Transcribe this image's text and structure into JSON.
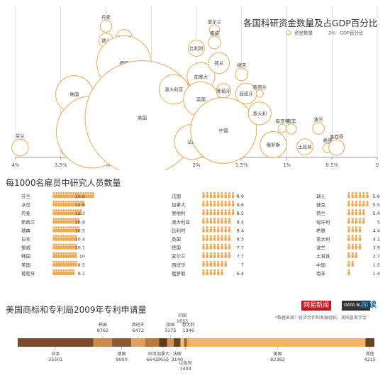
{
  "colors": {
    "orange": "#f0a850",
    "light_orange": "#f5bd74",
    "axis": "#999999",
    "grid": "#cccccc",
    "text": "#3a3a3a"
  },
  "titles": {
    "bubble": "各国科研资金数量及占GDP百分比",
    "people": "每1000名雇员中研究人员数量",
    "patents": "美国商标和专利局2009年专利申请量"
  },
  "legend": {
    "funds": "资金数量",
    "gdp_pct": "GDP百分比",
    "gdp_pct_prefix": "2%"
  },
  "brands": {
    "a": "网易新闻",
    "b": "DATA BLOG",
    "c": "数读"
  },
  "source": "*数据来源：经济合作和发展组织，美国皇家学会",
  "chart_data": [
    {
      "type": "scatter",
      "title": "各国科研资金数量及占GDP百分比",
      "x_axis": {
        "reversed": true,
        "range": [
          0,
          4
        ],
        "ticks": [
          "4%",
          "3.5%",
          "3%",
          "2.5%",
          "2%",
          "1.5%",
          "1%",
          "0.5%",
          "0"
        ]
      },
      "points": [
        {
          "label": "芬兰",
          "x": 3.95,
          "size": 1.6
        },
        {
          "label": "瑞典",
          "x": 3.4,
          "size": 2.0
        },
        {
          "label": "韩国",
          "x": 3.35,
          "size": 8.0
        },
        {
          "label": "日本",
          "x": 3.15,
          "size": 30.0
        },
        {
          "label": "丹麦",
          "x": 3.0,
          "size": 0.8
        },
        {
          "label": "瑞士",
          "x": 3.0,
          "size": 1.2
        },
        {
          "label": "奥地利",
          "x": 2.8,
          "size": 1.5
        },
        {
          "label": "德国",
          "x": 2.8,
          "size": 17.0
        },
        {
          "label": "冰岛",
          "x": 2.6,
          "size": 0.05
        },
        {
          "label": "美国",
          "x": 2.6,
          "size": 75.0
        },
        {
          "label": "澳大利亚",
          "x": 2.25,
          "size": 5.0
        },
        {
          "label": "法国",
          "x": 2.05,
          "size": 7.0
        },
        {
          "label": "比利时",
          "x": 2.0,
          "size": 1.5
        },
        {
          "label": "加拿大",
          "x": 1.95,
          "size": 4.5
        },
        {
          "label": "英国",
          "x": 1.95,
          "size": 7.0
        },
        {
          "label": "爱尔兰",
          "x": 1.8,
          "size": 0.6
        },
        {
          "label": "挪威",
          "x": 1.8,
          "size": 0.9
        },
        {
          "label": "荷兰",
          "x": 1.75,
          "size": 2.5
        },
        {
          "label": "葡萄牙",
          "x": 1.7,
          "size": 1.2
        },
        {
          "label": "中国",
          "x": 1.7,
          "size": 25.0
        },
        {
          "label": "捷克",
          "x": 1.5,
          "size": 0.9
        },
        {
          "label": "西班牙",
          "x": 1.45,
          "size": 2.5
        },
        {
          "label": "新西兰",
          "x": 1.3,
          "size": 0.3
        },
        {
          "label": "意大利",
          "x": 1.3,
          "size": 3.0
        },
        {
          "label": "俄罗斯",
          "x": 1.15,
          "size": 4.0
        },
        {
          "label": "匈牙利",
          "x": 1.05,
          "size": 0.4
        },
        {
          "label": "南非",
          "x": 0.95,
          "size": 0.6
        },
        {
          "label": "土耳其",
          "x": 0.8,
          "size": 1.5
        },
        {
          "label": "波兰",
          "x": 0.65,
          "size": 0.8
        },
        {
          "label": "希腊",
          "x": 0.55,
          "size": 0.5
        },
        {
          "label": "墨西哥",
          "x": 0.45,
          "size": 1.4
        }
      ]
    },
    {
      "type": "bar",
      "title": "每1000名雇员中研究人员数量",
      "columns": [
        [
          {
            "label": "芬兰",
            "value": 16.6
          },
          {
            "label": "冰岛",
            "value": 12.9
          },
          {
            "label": "丹麦",
            "value": 12.3
          },
          {
            "label": "新西兰",
            "value": 10.8
          },
          {
            "label": "瑞典",
            "value": 10.5
          },
          {
            "label": "日本",
            "value": 10.4
          },
          {
            "label": "挪威",
            "value": 10.1
          },
          {
            "label": "韩国",
            "value": 10
          },
          {
            "label": "美国",
            "value": 9.5
          },
          {
            "label": "葡萄牙",
            "value": 9.1
          }
        ],
        [
          {
            "label": "法国",
            "value": 8.9
          },
          {
            "label": "加拿大",
            "value": 8.6
          },
          {
            "label": "奥地利",
            "value": 8.5
          },
          {
            "label": "澳大利亚",
            "value": 8.4
          },
          {
            "label": "比利时",
            "value": 8.4
          },
          {
            "label": "英国",
            "value": 8.3
          },
          {
            "label": "德国",
            "value": 7.7
          },
          {
            "label": "爱尔兰",
            "value": 7.7
          },
          {
            "label": "西班牙",
            "value": 7
          },
          {
            "label": "俄罗斯",
            "value": 6.4
          }
        ],
        [
          {
            "label": "瑞士",
            "value": 5.6
          },
          {
            "label": "捷克",
            "value": 5.5
          },
          {
            "label": "荷兰",
            "value": 5.4
          },
          {
            "label": "匈牙利",
            "value": 5
          },
          {
            "label": "希腊",
            "value": 4.4
          },
          {
            "label": "意大利",
            "value": 4.1
          },
          {
            "label": "波兰",
            "value": 3.9
          },
          {
            "label": "土耳其",
            "value": 2.7
          },
          {
            "label": "中国",
            "value": 1.5
          },
          {
            "label": "南非",
            "value": 1.4
          }
        ]
      ]
    },
    {
      "type": "bar",
      "title": "美国商标和专利局2009年专利申请量",
      "segments": [
        {
          "label": "日本",
          "value": 35501,
          "color": "#7a4a2a",
          "side": "below"
        },
        {
          "label": "韩国",
          "value": 8762,
          "color": "#c98a4a",
          "side": "above"
        },
        {
          "label": "德国",
          "value": 9000,
          "color": "#8a5a30",
          "side": "below"
        },
        {
          "label": "西班牙",
          "value": 6472,
          "color": "#e0a060",
          "side": "above"
        },
        {
          "label": "台湾",
          "value": 6643,
          "color": "#b87838",
          "side": "below"
        },
        {
          "label": "加拿大",
          "value": 3655,
          "color": "#5a3a1a",
          "side": "below"
        },
        {
          "label": "英国",
          "value": 3175,
          "color": "#d89050",
          "side": "above"
        },
        {
          "label": "法国",
          "value": 3140,
          "color": "#6a4420",
          "side": "below"
        },
        {
          "label": "中国",
          "value": 1655,
          "color": "#f0c070",
          "side": "above"
        },
        {
          "label": "以色列",
          "value": 1404,
          "color": "#a06830",
          "side": "below"
        },
        {
          "label": "意大利",
          "value": 1346,
          "color": "#e8a858",
          "side": "above"
        },
        {
          "label": "美国",
          "value": 82382,
          "color": "#f3b466",
          "side": "below"
        },
        {
          "label": "其他",
          "value": 4215,
          "color": "#6a4422",
          "side": "below"
        }
      ]
    }
  ]
}
